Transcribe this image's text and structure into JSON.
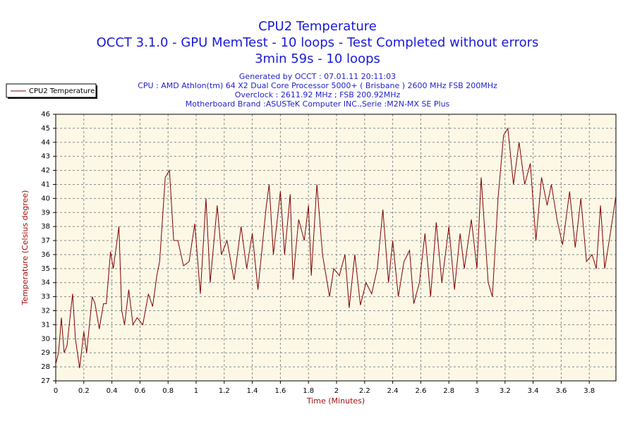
{
  "chart_data": {
    "type": "line",
    "title": "CPU2 Temperature",
    "subtitle": [
      "OCCT 3.1.0 - GPU MemTest - 10 loops - Test Completed without errors",
      "3min 59s - 10 loops"
    ],
    "info": [
      "Generated by OCCT : 07.01.11 20:11:03",
      "CPU : AMD Athlon(tm) 64 X2 Dual Core Processor 5000+ ( Brisbane ) 2600 MHz FSB 200MHz",
      "Overclock : 2611.92 MHz ; FSB 200.92MHz",
      "Motherboard Brand :ASUSTeK Computer INC.,Serie :M2N-MX SE Plus"
    ],
    "x_label": "Time (Minutes)",
    "y_label": "Temperature (Celsius degree)",
    "xlim": [
      0,
      3.99
    ],
    "ylim": [
      27,
      46
    ],
    "xticks": [
      0,
      0.2,
      0.4,
      0.6,
      0.8,
      1,
      1.2,
      1.4,
      1.6,
      1.8,
      2,
      2.2,
      2.4,
      2.6,
      2.8,
      3,
      3.2,
      3.4,
      3.6,
      3.8
    ],
    "yticks": [
      27,
      28,
      29,
      30,
      31,
      32,
      33,
      34,
      35,
      36,
      37,
      38,
      39,
      40,
      41,
      42,
      43,
      44,
      45,
      46
    ],
    "grid": true,
    "legend": "top-left",
    "series": [
      {
        "name": "CPU2 Temperature",
        "color": "#800000",
        "x": [
          0,
          0.02,
          0.04,
          0.06,
          0.08,
          0.12,
          0.14,
          0.17,
          0.2,
          0.22,
          0.26,
          0.28,
          0.31,
          0.34,
          0.36,
          0.39,
          0.41,
          0.45,
          0.47,
          0.49,
          0.52,
          0.55,
          0.58,
          0.62,
          0.66,
          0.69,
          0.72,
          0.74,
          0.78,
          0.81,
          0.84,
          0.87,
          0.91,
          0.95,
          0.99,
          1.03,
          1.07,
          1.1,
          1.15,
          1.18,
          1.22,
          1.27,
          1.32,
          1.36,
          1.4,
          1.44,
          1.5,
          1.52,
          1.55,
          1.6,
          1.63,
          1.67,
          1.69,
          1.73,
          1.77,
          1.8,
          1.82,
          1.86,
          1.9,
          1.95,
          1.98,
          2.02,
          2.06,
          2.09,
          2.13,
          2.17,
          2.21,
          2.25,
          2.29,
          2.33,
          2.37,
          2.4,
          2.44,
          2.48,
          2.52,
          2.55,
          2.59,
          2.63,
          2.67,
          2.71,
          2.75,
          2.8,
          2.84,
          2.88,
          2.91,
          2.96,
          3.0,
          3.03,
          3.08,
          3.11,
          3.15,
          3.19,
          3.22,
          3.26,
          3.3,
          3.34,
          3.38,
          3.42,
          3.46,
          3.5,
          3.53,
          3.57,
          3.61,
          3.66,
          3.7,
          3.74,
          3.78,
          3.82,
          3.85,
          3.88,
          3.91,
          3.95,
          3.99
        ],
        "values": [
          28.2,
          29,
          31.5,
          29,
          29.5,
          33.2,
          30,
          27.9,
          30.5,
          29,
          33,
          32.5,
          30.7,
          32.5,
          32.5,
          36.2,
          35,
          38,
          32,
          31,
          33.5,
          31,
          31.5,
          31,
          33.2,
          32.3,
          34.5,
          35.5,
          41.5,
          42,
          37,
          37,
          35.2,
          35.5,
          38.2,
          33.2,
          40,
          34,
          39.5,
          36,
          37,
          34.2,
          38,
          35,
          37.5,
          33.5,
          39.5,
          41,
          36,
          40.5,
          36,
          40.3,
          34.2,
          38.5,
          37,
          39.5,
          34.5,
          41,
          36,
          33,
          35,
          34.5,
          36,
          32.2,
          36,
          32.4,
          34,
          33.2,
          35,
          39.2,
          34,
          37,
          33,
          35.5,
          36.3,
          32.5,
          34,
          37.5,
          33,
          38.3,
          34,
          38,
          33.5,
          37.5,
          35,
          38.5,
          35,
          41.5,
          34,
          33,
          40,
          44.5,
          45,
          41,
          44,
          41,
          42.5,
          37,
          41.5,
          39.5,
          41,
          38.5,
          36.7,
          40.5,
          36.5,
          40,
          35.5,
          36,
          35,
          39.5,
          35,
          37.5,
          40.2
        ]
      }
    ]
  }
}
